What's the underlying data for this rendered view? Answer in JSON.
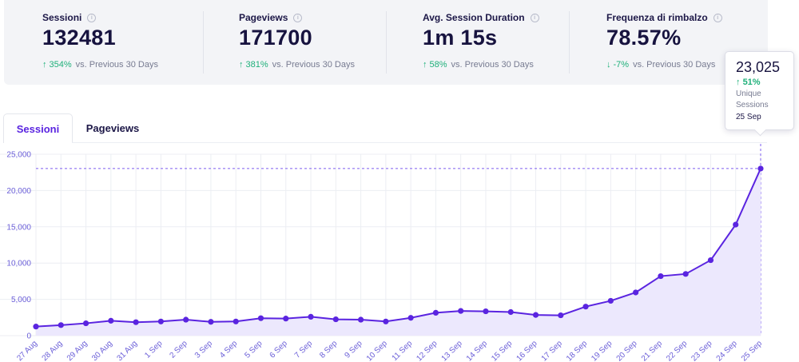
{
  "stats": [
    {
      "label": "Sessioni",
      "value": "132481",
      "change": "354%",
      "direction": "up",
      "compare": "vs. Previous 30 Days"
    },
    {
      "label": "Pageviews",
      "value": "171700",
      "change": "381%",
      "direction": "up",
      "compare": "vs. Previous 30 Days"
    },
    {
      "label": "Avg. Session Duration",
      "value": "1m 15s",
      "change": "58%",
      "direction": "up",
      "compare": "vs. Previous 30 Days"
    },
    {
      "label": "Frequenza di rimbalzo",
      "value": "78.57%",
      "change": "-7%",
      "direction": "down",
      "compare": "vs. Previous 30 Days"
    }
  ],
  "icons": {
    "info": "info-icon",
    "up": "arrow-up-icon",
    "down": "arrow-down-icon"
  },
  "tabs": [
    {
      "label": "Sessioni",
      "active": true
    },
    {
      "label": "Pageviews",
      "active": false
    }
  ],
  "tooltip": {
    "value": "23,025",
    "change": "51%",
    "label": "Unique Sessions",
    "date": "25 Sep"
  },
  "colors": {
    "accent": "#5a24e0",
    "positive": "#1fb07a",
    "area_fill": "#ece8fd"
  },
  "chart_data": {
    "type": "area",
    "x": [
      "27 Aug",
      "28 Aug",
      "29 Aug",
      "30 Aug",
      "31 Aug",
      "1 Sep",
      "2 Sep",
      "3 Sep",
      "4 Sep",
      "5 Sep",
      "6 Sep",
      "7 Sep",
      "8 Sep",
      "9 Sep",
      "10 Sep",
      "11 Sep",
      "12 Sep",
      "13 Sep",
      "14 Sep",
      "15 Sep",
      "16 Sep",
      "17 Sep",
      "18 Sep",
      "19 Sep",
      "20 Sep",
      "21 Sep",
      "22 Sep",
      "23 Sep",
      "24 Sep",
      "25 Sep"
    ],
    "series": [
      {
        "values": [
          1250,
          1450,
          1700,
          2050,
          1850,
          1950,
          2200,
          1900,
          1950,
          2400,
          2350,
          2600,
          2250,
          2200,
          1950,
          2450,
          3150,
          3400,
          3350,
          3250,
          2850,
          2800,
          4000,
          4800,
          5950,
          8200,
          8500,
          10400,
          15300,
          23025
        ]
      }
    ],
    "yticks": [
      "0",
      "5,000",
      "10,000",
      "15,000",
      "20,000",
      "25,000"
    ],
    "ylim": [
      0,
      25000
    ],
    "grid": true,
    "reference_line": 23025
  }
}
